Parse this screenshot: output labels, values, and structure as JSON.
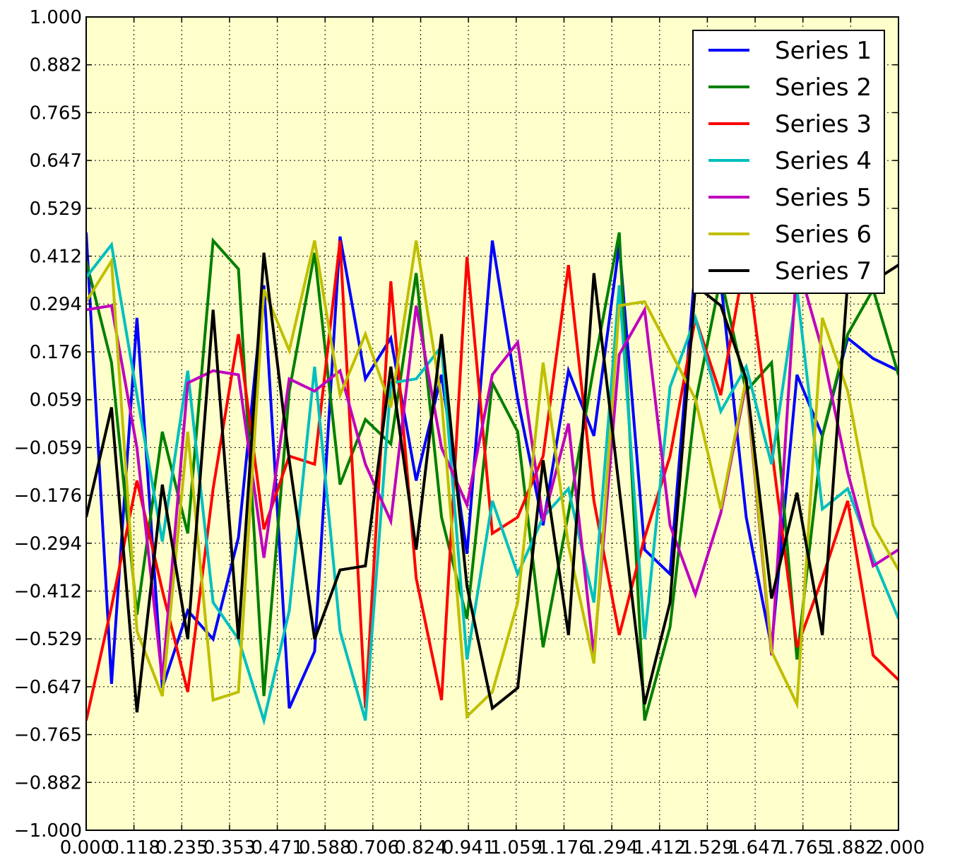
{
  "chart_data": {
    "type": "line",
    "xlim": [
      0,
      2
    ],
    "ylim": [
      -1,
      1
    ],
    "grid": true,
    "legend_position": "top-right",
    "background_color": "#ffffcc",
    "x_tick_labels": [
      "0.000",
      "0.118",
      "0.235",
      "0.353",
      "0.471",
      "0.588",
      "0.706",
      "0.824",
      "0.941",
      "1.059",
      "1.176",
      "1.294",
      "1.412",
      "1.529",
      "1.647",
      "1.765",
      "1.882",
      "2.000"
    ],
    "y_tick_labels": [
      "1.000",
      "0.882",
      "0.765",
      "0.647",
      "0.529",
      "0.412",
      "0.294",
      "0.176",
      "0.059",
      "−0.059",
      "−0.176",
      "−0.294",
      "−0.412",
      "−0.529",
      "−0.647",
      "−0.765",
      "−0.882",
      "−1.000"
    ],
    "x": [
      0.0,
      0.0625,
      0.125,
      0.1875,
      0.25,
      0.3125,
      0.375,
      0.4375,
      0.5,
      0.5625,
      0.625,
      0.6875,
      0.75,
      0.8125,
      0.875,
      0.9375,
      1.0,
      1.0625,
      1.125,
      1.1875,
      1.25,
      1.3125,
      1.375,
      1.4375,
      1.5,
      1.5625,
      1.625,
      1.6875,
      1.75,
      1.8125,
      1.875,
      1.9375,
      2.0
    ],
    "series": [
      {
        "name": "Series 1",
        "color": "#0000ff",
        "values": [
          0.47,
          -0.64,
          0.26,
          -0.65,
          -0.46,
          -0.53,
          -0.28,
          0.34,
          -0.7,
          -0.56,
          0.46,
          0.11,
          0.21,
          -0.14,
          0.12,
          -0.32,
          0.45,
          0.06,
          -0.25,
          0.13,
          -0.03,
          0.44,
          -0.31,
          -0.37,
          0.39,
          0.35,
          -0.23,
          -0.55,
          0.12,
          -0.03,
          0.21,
          0.16,
          0.13
        ]
      },
      {
        "name": "Series 2",
        "color": "#007f00",
        "values": [
          0.4,
          0.15,
          -0.47,
          -0.02,
          -0.27,
          0.45,
          0.38,
          -0.67,
          0.08,
          0.42,
          -0.15,
          0.01,
          -0.05,
          0.37,
          -0.23,
          -0.48,
          0.1,
          -0.02,
          -0.55,
          -0.22,
          0.14,
          0.47,
          -0.73,
          -0.5,
          0.05,
          0.36,
          0.08,
          0.15,
          -0.58,
          -0.03,
          0.22,
          0.33,
          0.12
        ]
      },
      {
        "name": "Series 3",
        "color": "#ff0000",
        "values": [
          -0.73,
          -0.45,
          -0.14,
          -0.41,
          -0.66,
          -0.16,
          0.22,
          -0.26,
          -0.08,
          -0.1,
          0.45,
          -0.7,
          0.35,
          -0.38,
          -0.68,
          0.41,
          -0.27,
          -0.23,
          -0.08,
          0.39,
          -0.19,
          -0.52,
          -0.28,
          -0.08,
          0.26,
          0.07,
          0.42,
          -0.06,
          -0.55,
          -0.38,
          -0.19,
          -0.57,
          -0.63
        ]
      },
      {
        "name": "Series 4",
        "color": "#00bfbf",
        "values": [
          0.36,
          0.44,
          0.07,
          -0.29,
          0.13,
          -0.44,
          -0.53,
          -0.73,
          -0.46,
          0.14,
          -0.51,
          -0.73,
          0.1,
          0.11,
          0.19,
          -0.58,
          -0.19,
          -0.37,
          -0.23,
          -0.16,
          -0.44,
          0.34,
          -0.53,
          0.09,
          0.26,
          0.03,
          0.14,
          -0.1,
          0.33,
          -0.21,
          -0.16,
          -0.33,
          -0.48
        ]
      },
      {
        "name": "Series 5",
        "color": "#bf00bf",
        "values": [
          0.28,
          0.29,
          -0.06,
          -0.63,
          0.1,
          0.13,
          0.12,
          -0.33,
          0.11,
          0.08,
          0.13,
          -0.1,
          -0.24,
          0.29,
          -0.06,
          -0.2,
          0.12,
          0.2,
          -0.24,
          0.0,
          -0.57,
          0.17,
          0.28,
          -0.25,
          -0.42,
          -0.22,
          0.1,
          -0.57,
          0.4,
          0.18,
          -0.12,
          -0.35,
          -0.31
        ]
      },
      {
        "name": "Series 6",
        "color": "#bfbf00",
        "values": [
          0.3,
          0.4,
          -0.51,
          -0.67,
          -0.02,
          -0.68,
          -0.66,
          0.33,
          0.18,
          0.45,
          0.07,
          0.22,
          0.04,
          0.45,
          0.06,
          -0.72,
          -0.66,
          -0.44,
          0.15,
          -0.3,
          -0.59,
          0.29,
          0.3,
          0.18,
          0.06,
          -0.21,
          0.11,
          -0.56,
          -0.69,
          0.26,
          0.08,
          -0.25,
          -0.36
        ]
      },
      {
        "name": "Series 7",
        "color": "#000000",
        "values": [
          -0.23,
          0.04,
          -0.71,
          -0.15,
          -0.53,
          0.28,
          -0.53,
          0.42,
          -0.09,
          -0.53,
          -0.36,
          -0.35,
          0.14,
          -0.31,
          0.22,
          -0.4,
          -0.7,
          -0.65,
          -0.09,
          -0.52,
          0.37,
          -0.16,
          -0.69,
          -0.44,
          0.34,
          0.29,
          0.11,
          -0.43,
          -0.17,
          -0.52,
          0.35,
          0.35,
          0.39
        ]
      }
    ]
  }
}
